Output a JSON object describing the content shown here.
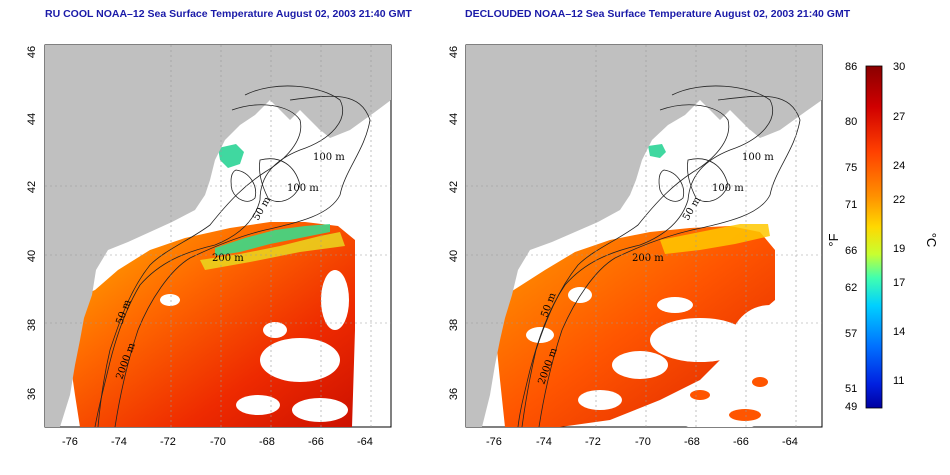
{
  "panels": [
    {
      "title": "RU COOL NOAA–12 Sea Surface Temperature August 02, 2003 21:40 GMT",
      "x_ticks": [
        "-76",
        "-74",
        "-72",
        "-70",
        "-68",
        "-66",
        "-64"
      ],
      "y_ticks": [
        "46",
        "44",
        "42",
        "40",
        "38",
        "36"
      ],
      "contour_labels": [
        "100 m",
        "100 m",
        "50 m",
        "200 m",
        "50 m",
        "2000 m"
      ]
    },
    {
      "title": "DECLOUDED NOAA–12 Sea Surface Temperature August 02, 2003 21:40 GMT",
      "x_ticks": [
        "-76",
        "-74",
        "-72",
        "-70",
        "-68",
        "-66",
        "-64"
      ],
      "y_ticks": [
        "46",
        "44",
        "42",
        "40",
        "38",
        "36"
      ],
      "contour_labels": [
        "100 m",
        "100 m",
        "50 m",
        "200 m",
        "50 m",
        "2000 m"
      ]
    }
  ],
  "colorbar": {
    "fahrenheit_label": "°F",
    "celsius_label": "°C",
    "fahrenheit_ticks": [
      "86",
      "80",
      "75",
      "71",
      "66",
      "62",
      "57",
      "51",
      "49"
    ],
    "celsius_ticks": [
      "30",
      "27",
      "24",
      "22",
      "19",
      "17",
      "14",
      "11"
    ],
    "colors": [
      "#8a0000",
      "#c80000",
      "#ff3000",
      "#ff8000",
      "#ffc800",
      "#e0ff20",
      "#60ff90",
      "#00e0ff",
      "#0090ff",
      "#0030ff",
      "#0000b0"
    ]
  },
  "colors": {
    "land": "#c0c0c0",
    "title": "#1a1aa8"
  }
}
